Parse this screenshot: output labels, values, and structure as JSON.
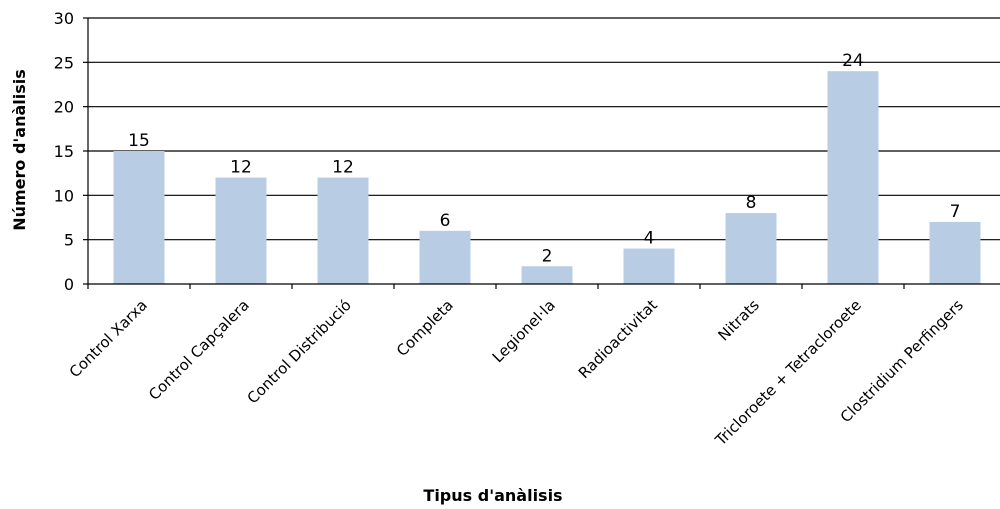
{
  "chart_data": {
    "type": "bar",
    "categories": [
      "Control Xarxa",
      "Control Capçalera",
      "Control Distribució",
      "Completa",
      "Legionel·la",
      "Radioactivitat",
      "Nitrats",
      "Tricloroete + Tetracloroete",
      "Clostridium Perfingers"
    ],
    "values": [
      15,
      12,
      12,
      6,
      2,
      4,
      8,
      24,
      7
    ],
    "title": "",
    "xlabel": "Tipus d'anàlisis",
    "ylabel": "Número d'anàlisis",
    "ylim": [
      0,
      30
    ],
    "yticks": [
      0,
      5,
      10,
      15,
      20,
      25,
      30
    ],
    "grid": true,
    "legend": "none",
    "bar_color": "#b8cce4",
    "grid_color": "#000000"
  }
}
